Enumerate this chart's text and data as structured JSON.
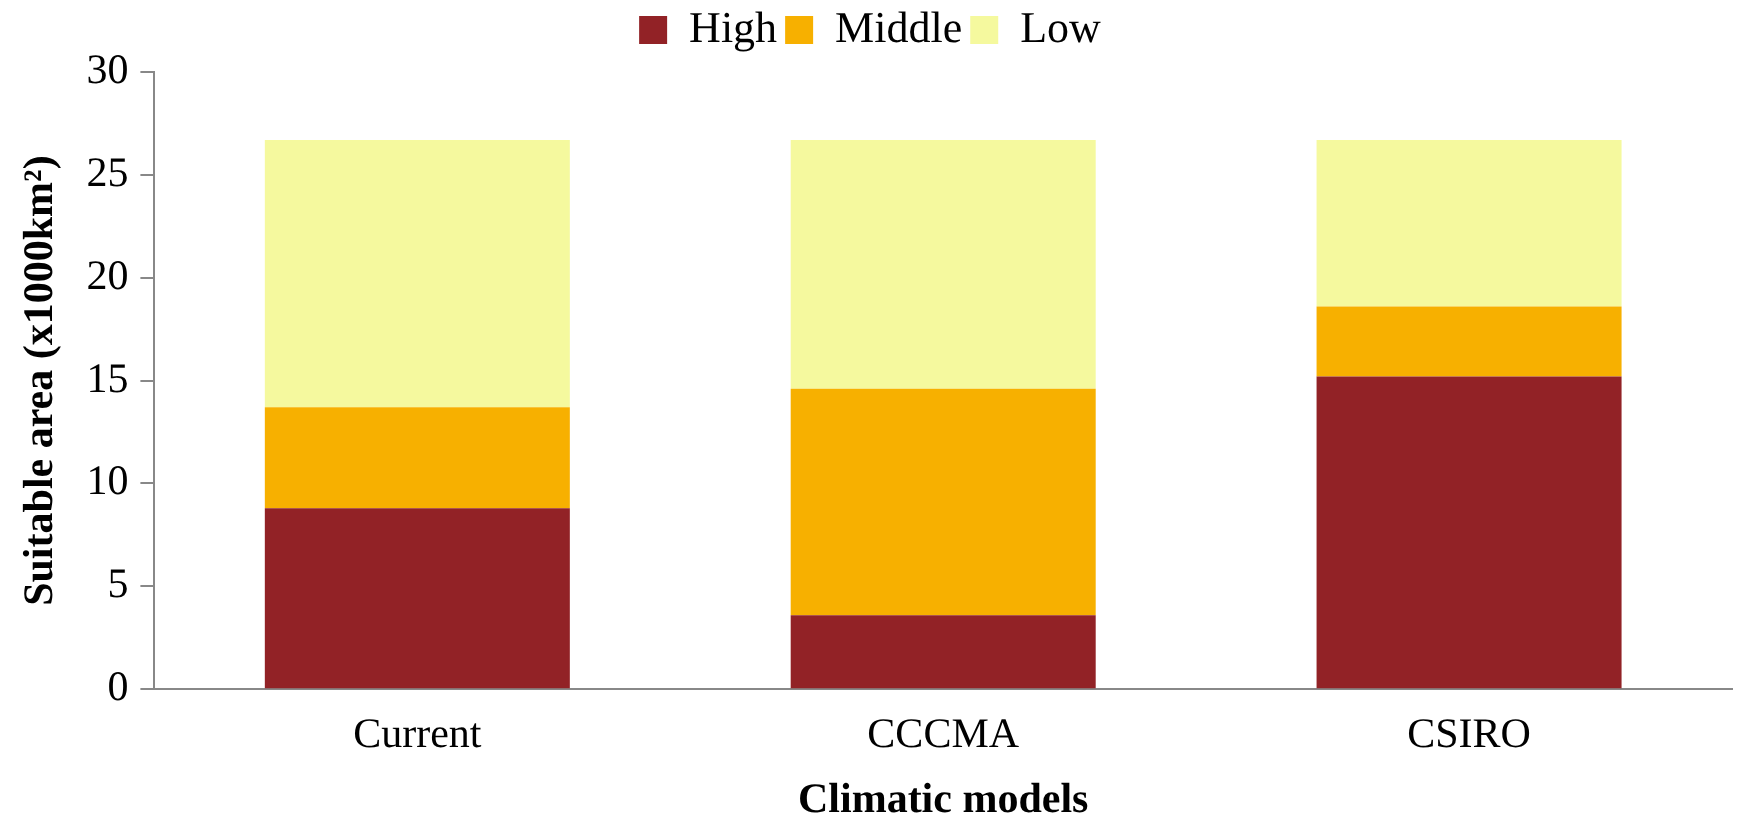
{
  "chart_data": {
    "type": "bar",
    "stacked": true,
    "xlabel": "Climatic models",
    "ylabel": "Suitable area (x1000km²)",
    "categories": [
      "Current",
      "CCCMA",
      "CSIRO"
    ],
    "series": [
      {
        "name": "High",
        "color": "#922226",
        "values": [
          8.8,
          3.6,
          15.2
        ]
      },
      {
        "name": "Middle",
        "color": "#f7b000",
        "values": [
          4.9,
          11.0,
          3.4
        ]
      },
      {
        "name": "Low",
        "color": "#f5f99e",
        "values": [
          13.0,
          12.1,
          8.1
        ]
      }
    ],
    "ylim": [
      0,
      30
    ],
    "yticks": [
      0,
      5,
      10,
      15,
      20,
      25,
      30
    ],
    "grid": false,
    "legend": "top"
  }
}
